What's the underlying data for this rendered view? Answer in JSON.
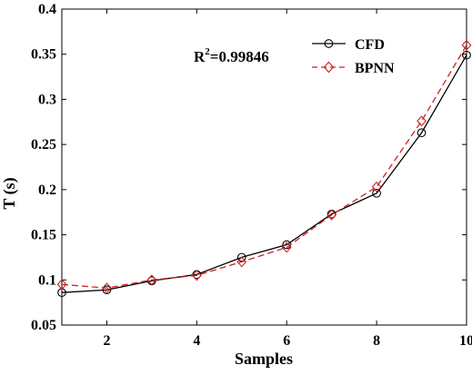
{
  "chart_data": {
    "type": "line",
    "xlabel": "Samples",
    "ylabel": "T (s)",
    "xlim": [
      1,
      10
    ],
    "ylim": [
      0.05,
      0.4
    ],
    "xticks": [
      2,
      4,
      6,
      8,
      10
    ],
    "yticks": [
      0.05,
      0.1,
      0.15,
      0.2,
      0.25,
      0.3,
      0.35,
      0.4
    ],
    "x": [
      1,
      2,
      3,
      4,
      5,
      6,
      7,
      8,
      9,
      10
    ],
    "series": [
      {
        "name": "CFD",
        "values": [
          0.086,
          0.089,
          0.099,
          0.106,
          0.125,
          0.139,
          0.173,
          0.196,
          0.263,
          0.349
        ],
        "color": "#000000",
        "line": "solid",
        "marker": "circle"
      },
      {
        "name": "BPNN",
        "values": [
          0.095,
          0.091,
          0.1,
          0.105,
          0.12,
          0.136,
          0.172,
          0.203,
          0.276,
          0.36
        ],
        "color": "#cc2222",
        "line": "dashed",
        "marker": "diamond"
      }
    ],
    "legend_position": "top-right",
    "grid": false,
    "annotation": {
      "prefix": "R",
      "sup": "2",
      "suffix": "=0.99846"
    }
  }
}
